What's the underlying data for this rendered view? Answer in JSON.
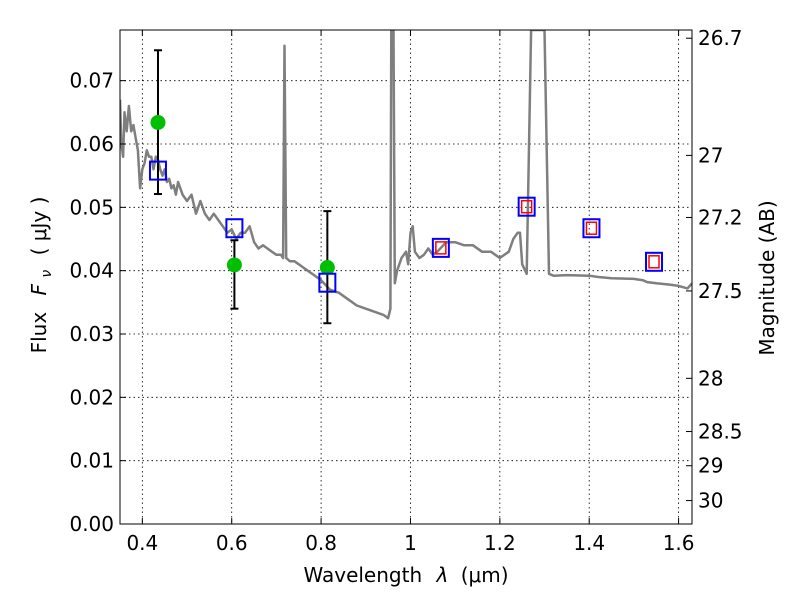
{
  "chart_data": {
    "type": "scatter",
    "xlabel_text": "Wavelength",
    "xlabel_symbol": "λ",
    "xlabel_unit": "(μm)",
    "ylabel_text": "Flux",
    "ylabel_symbol": "F",
    "ylabel_subscript": "ν",
    "ylabel_unit": "( μJy )",
    "y2label": "Magnitude (AB)",
    "xlim": [
      0.35,
      1.63
    ],
    "ylim": [
      0.0,
      0.078
    ],
    "grid": true,
    "x_ticks": [
      0.4,
      0.6,
      0.8,
      1.0,
      1.2,
      1.4,
      1.6
    ],
    "x_tick_labels": [
      "0.4",
      "0.6",
      "0.8",
      "1",
      "1.2",
      "1.4",
      "1.6"
    ],
    "y_ticks": [
      0.0,
      0.01,
      0.02,
      0.03,
      0.04,
      0.05,
      0.06,
      0.07
    ],
    "y_tick_labels": [
      "0.00",
      "0.01",
      "0.02",
      "0.03",
      "0.04",
      "0.05",
      "0.06",
      "0.07"
    ],
    "y2_ticks": [
      {
        "label": "26.7",
        "flux": 0.0767
      },
      {
        "label": "27",
        "flux": 0.0582
      },
      {
        "label": "27.2",
        "flux": 0.0484
      },
      {
        "label": "27.5",
        "flux": 0.0368
      },
      {
        "label": "28",
        "flux": 0.023
      },
      {
        "label": "28.5",
        "flux": 0.0146
      },
      {
        "label": "29",
        "flux": 0.0092
      },
      {
        "label": "30",
        "flux": 0.0037
      }
    ],
    "series": [
      {
        "name": "model spectrum",
        "kind": "line",
        "color": "#7f7f7f",
        "points": [
          [
            0.35,
            0.067
          ],
          [
            0.353,
            0.06
          ],
          [
            0.357,
            0.058
          ],
          [
            0.36,
            0.065
          ],
          [
            0.365,
            0.062
          ],
          [
            0.37,
            0.066
          ],
          [
            0.375,
            0.062
          ],
          [
            0.38,
            0.063
          ],
          [
            0.385,
            0.061
          ],
          [
            0.39,
            0.059
          ],
          [
            0.395,
            0.053
          ],
          [
            0.4,
            0.056
          ],
          [
            0.405,
            0.057
          ],
          [
            0.41,
            0.059
          ],
          [
            0.415,
            0.058
          ],
          [
            0.42,
            0.058
          ],
          [
            0.425,
            0.056
          ],
          [
            0.43,
            0.058
          ],
          [
            0.435,
            0.0575
          ],
          [
            0.44,
            0.056
          ],
          [
            0.445,
            0.055
          ],
          [
            0.45,
            0.056
          ],
          [
            0.455,
            0.054
          ],
          [
            0.46,
            0.0545
          ],
          [
            0.465,
            0.053
          ],
          [
            0.47,
            0.0535
          ],
          [
            0.475,
            0.052
          ],
          [
            0.48,
            0.054
          ],
          [
            0.49,
            0.052
          ],
          [
            0.5,
            0.051
          ],
          [
            0.51,
            0.052
          ],
          [
            0.52,
            0.049
          ],
          [
            0.53,
            0.051
          ],
          [
            0.54,
            0.049
          ],
          [
            0.55,
            0.048
          ],
          [
            0.56,
            0.049
          ],
          [
            0.57,
            0.048
          ],
          [
            0.58,
            0.047
          ],
          [
            0.59,
            0.046
          ],
          [
            0.6,
            0.0465
          ],
          [
            0.61,
            0.045
          ],
          [
            0.62,
            0.046
          ],
          [
            0.63,
            0.046
          ],
          [
            0.64,
            0.047
          ],
          [
            0.65,
            0.0445
          ],
          [
            0.66,
            0.0435
          ],
          [
            0.67,
            0.044
          ],
          [
            0.68,
            0.0435
          ],
          [
            0.69,
            0.043
          ],
          [
            0.7,
            0.0425
          ],
          [
            0.71,
            0.0425
          ],
          [
            0.715,
            0.042
          ],
          [
            0.718,
            0.0755
          ],
          [
            0.722,
            0.042
          ],
          [
            0.73,
            0.0415
          ],
          [
            0.74,
            0.0415
          ],
          [
            0.75,
            0.041
          ],
          [
            0.76,
            0.0405
          ],
          [
            0.77,
            0.04
          ],
          [
            0.78,
            0.0395
          ],
          [
            0.79,
            0.039
          ],
          [
            0.8,
            0.0385
          ],
          [
            0.82,
            0.037
          ],
          [
            0.84,
            0.0365
          ],
          [
            0.86,
            0.0355
          ],
          [
            0.88,
            0.0345
          ],
          [
            0.9,
            0.034
          ],
          [
            0.92,
            0.0335
          ],
          [
            0.94,
            0.033
          ],
          [
            0.95,
            0.0325
          ],
          [
            0.955,
            0.034
          ],
          [
            0.957,
            0.078
          ],
          [
            0.962,
            0.078
          ],
          [
            0.965,
            0.038
          ],
          [
            0.97,
            0.04
          ],
          [
            0.98,
            0.042
          ],
          [
            0.99,
            0.043
          ],
          [
            0.995,
            0.041
          ],
          [
            1.0,
            0.046
          ],
          [
            1.005,
            0.047
          ],
          [
            1.01,
            0.043
          ],
          [
            1.02,
            0.042
          ],
          [
            1.03,
            0.0425
          ],
          [
            1.04,
            0.0435
          ],
          [
            1.05,
            0.0425
          ],
          [
            1.06,
            0.043
          ],
          [
            1.08,
            0.0445
          ],
          [
            1.1,
            0.0445
          ],
          [
            1.12,
            0.044
          ],
          [
            1.14,
            0.044
          ],
          [
            1.16,
            0.043
          ],
          [
            1.18,
            0.043
          ],
          [
            1.2,
            0.042
          ],
          [
            1.22,
            0.043
          ],
          [
            1.23,
            0.045
          ],
          [
            1.24,
            0.046
          ],
          [
            1.245,
            0.046
          ],
          [
            1.25,
            0.041
          ],
          [
            1.26,
            0.0395
          ],
          [
            1.27,
            0.078
          ],
          [
            1.3,
            0.078
          ],
          [
            1.31,
            0.0395
          ],
          [
            1.32,
            0.0392
          ],
          [
            1.35,
            0.0393
          ],
          [
            1.4,
            0.0392
          ],
          [
            1.42,
            0.039
          ],
          [
            1.45,
            0.0388
          ],
          [
            1.5,
            0.0387
          ],
          [
            1.52,
            0.0385
          ],
          [
            1.53,
            0.0382
          ],
          [
            1.55,
            0.038
          ],
          [
            1.58,
            0.0378
          ],
          [
            1.6,
            0.0376
          ],
          [
            1.62,
            0.0372
          ],
          [
            1.63,
            0.038
          ]
        ]
      },
      {
        "name": "observed photometry",
        "kind": "points_errorbars",
        "color": "#00bf00",
        "points": [
          {
            "x": 0.435,
            "y": 0.0634,
            "yerr_low": 0.0521,
            "yerr_high": 0.0748
          },
          {
            "x": 0.606,
            "y": 0.0409,
            "yerr_low": 0.034,
            "yerr_high": 0.0448
          },
          {
            "x": 0.814,
            "y": 0.0405,
            "yerr_low": 0.0317,
            "yerr_high": 0.0494
          }
        ]
      },
      {
        "name": "model photometry",
        "kind": "open_squares",
        "color": "#0000ff",
        "points": [
          {
            "x": 0.435,
            "y": 0.0558
          },
          {
            "x": 0.606,
            "y": 0.0467
          },
          {
            "x": 0.814,
            "y": 0.0381
          },
          {
            "x": 1.068,
            "y": 0.0436
          },
          {
            "x": 1.26,
            "y": 0.0501
          },
          {
            "x": 1.405,
            "y": 0.0467
          },
          {
            "x": 1.545,
            "y": 0.0414
          }
        ]
      },
      {
        "name": "filter squares",
        "kind": "open_squares_small",
        "color": "#ff0000",
        "points": [
          {
            "x": 1.068,
            "y": 0.0436
          },
          {
            "x": 1.26,
            "y": 0.0501
          },
          {
            "x": 1.405,
            "y": 0.0467
          },
          {
            "x": 1.545,
            "y": 0.0414
          }
        ]
      }
    ]
  }
}
